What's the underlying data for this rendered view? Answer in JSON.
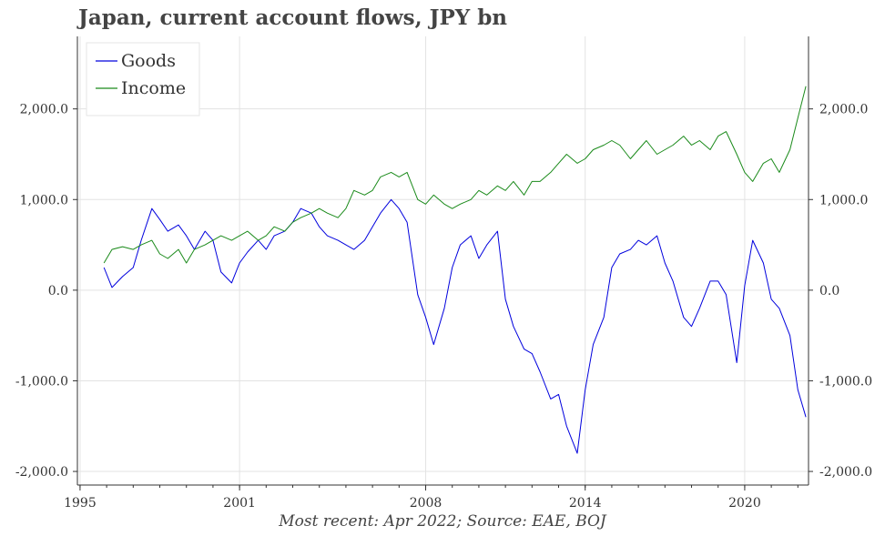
{
  "chart_data": {
    "type": "line",
    "title": "Japan, current account flows, JPY bn",
    "footnote": "Most recent: Apr 2022; Source: EAE, BOJ",
    "xlabel": "",
    "ylabel": "",
    "x_ticks": [
      "1995",
      "2001",
      "2008",
      "2014",
      "2020"
    ],
    "xlim": [
      1994.9,
      2022.4
    ],
    "ylim": [
      -2150,
      2800
    ],
    "y_ticks": [
      -2000,
      -1000,
      0,
      1000,
      2000
    ],
    "y_tick_labels": [
      "-2,000.0",
      "-1,000.0",
      "0.0",
      "1,000.0",
      "2,000.0"
    ],
    "grid": true,
    "dual_axis": true,
    "legend": "top-left",
    "series": [
      {
        "name": "Goods",
        "color": "#0000dd",
        "x": [
          1995.9,
          1996.2,
          1996.6,
          1997.0,
          1997.3,
          1997.7,
          1998.0,
          1998.3,
          1998.7,
          1999.0,
          1999.3,
          1999.7,
          2000.0,
          2000.3,
          2000.7,
          2001.0,
          2001.3,
          2001.7,
          2002.0,
          2002.3,
          2002.7,
          2003.0,
          2003.3,
          2003.7,
          2004.0,
          2004.3,
          2004.7,
          2005.0,
          2005.3,
          2005.7,
          2006.0,
          2006.3,
          2006.7,
          2007.0,
          2007.3,
          2007.7,
          2008.0,
          2008.3,
          2008.7,
          2009.0,
          2009.3,
          2009.7,
          2010.0,
          2010.3,
          2010.7,
          2011.0,
          2011.3,
          2011.7,
          2012.0,
          2012.3,
          2012.7,
          2013.0,
          2013.3,
          2013.7,
          2014.0,
          2014.3,
          2014.7,
          2015.0,
          2015.3,
          2015.7,
          2016.0,
          2016.3,
          2016.7,
          2017.0,
          2017.3,
          2017.7,
          2018.0,
          2018.3,
          2018.7,
          2019.0,
          2019.3,
          2019.7,
          2020.0,
          2020.3,
          2020.7,
          2021.0,
          2021.3,
          2021.7,
          2022.0,
          2022.3
        ],
        "values": [
          250,
          30,
          150,
          250,
          550,
          900,
          780,
          650,
          720,
          600,
          450,
          650,
          550,
          200,
          80,
          300,
          420,
          550,
          450,
          600,
          650,
          750,
          900,
          850,
          700,
          600,
          550,
          500,
          450,
          550,
          700,
          850,
          1000,
          900,
          750,
          -50,
          -300,
          -600,
          -200,
          250,
          500,
          600,
          350,
          500,
          650,
          -100,
          -400,
          -650,
          -700,
          -900,
          -1200,
          -1150,
          -1500,
          -1800,
          -1100,
          -600,
          -300,
          250,
          400,
          450,
          550,
          500,
          600,
          300,
          100,
          -300,
          -400,
          -200,
          100,
          100,
          -50,
          -800,
          50,
          550,
          300,
          -100,
          -200,
          -500,
          -1100,
          -1400
        ]
      },
      {
        "name": "Income",
        "color": "#1a8a1a",
        "x": [
          1995.9,
          1996.2,
          1996.6,
          1997.0,
          1997.3,
          1997.7,
          1998.0,
          1998.3,
          1998.7,
          1999.0,
          1999.3,
          1999.7,
          2000.0,
          2000.3,
          2000.7,
          2001.0,
          2001.3,
          2001.7,
          2002.0,
          2002.3,
          2002.7,
          2003.0,
          2003.3,
          2003.7,
          2004.0,
          2004.3,
          2004.7,
          2005.0,
          2005.3,
          2005.7,
          2006.0,
          2006.3,
          2006.7,
          2007.0,
          2007.3,
          2007.7,
          2008.0,
          2008.3,
          2008.7,
          2009.0,
          2009.3,
          2009.7,
          2010.0,
          2010.3,
          2010.7,
          2011.0,
          2011.3,
          2011.7,
          2012.0,
          2012.3,
          2012.7,
          2013.0,
          2013.3,
          2013.7,
          2014.0,
          2014.3,
          2014.7,
          2015.0,
          2015.3,
          2015.7,
          2016.0,
          2016.3,
          2016.7,
          2017.0,
          2017.3,
          2017.7,
          2018.0,
          2018.3,
          2018.7,
          2019.0,
          2019.3,
          2019.7,
          2020.0,
          2020.3,
          2020.7,
          2021.0,
          2021.3,
          2021.7,
          2022.0,
          2022.3
        ],
        "values": [
          300,
          450,
          480,
          450,
          500,
          550,
          400,
          350,
          450,
          300,
          450,
          500,
          550,
          600,
          550,
          600,
          650,
          550,
          600,
          700,
          650,
          750,
          800,
          850,
          900,
          850,
          800,
          900,
          1100,
          1050,
          1100,
          1250,
          1300,
          1250,
          1300,
          1000,
          950,
          1050,
          950,
          900,
          950,
          1000,
          1100,
          1050,
          1150,
          1100,
          1200,
          1050,
          1200,
          1200,
          1300,
          1400,
          1500,
          1400,
          1450,
          1550,
          1600,
          1650,
          1600,
          1450,
          1550,
          1650,
          1500,
          1550,
          1600,
          1700,
          1600,
          1650,
          1550,
          1700,
          1750,
          1500,
          1300,
          1200,
          1400,
          1450,
          1300,
          1550,
          1900,
          2250
        ]
      }
    ]
  }
}
